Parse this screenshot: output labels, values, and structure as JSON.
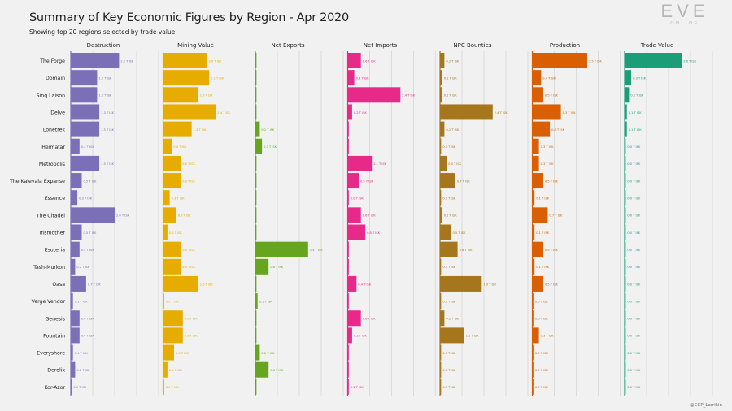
{
  "page": {
    "title": "Summary of Key Economic Figures by Region - Apr 2020",
    "subtitle": "Showing top 20 regions selected by trade value",
    "logo_text": "EVE",
    "logo_subtext": "ONLINE",
    "credit": "@CCP_Larrikin"
  },
  "chart_data": {
    "type": "bar",
    "orientation": "horizontal",
    "layout": "small-multiples",
    "title": "Summary of Key Economic Figures by Region - Apr 2020",
    "subtitle": "Showing top 20 regions selected by trade value",
    "unit": "T ISK",
    "categories": [
      "The Forge",
      "Domain",
      "Sinq Laison",
      "Delve",
      "Lonetrek",
      "Heimatar",
      "Metropolis",
      "The Kalevala Expanse",
      "Essence",
      "The Citadel",
      "Insmother",
      "Esoteria",
      "Tash-Murkon",
      "Oasa",
      "Verge Vendor",
      "Genesis",
      "Fountain",
      "Everyshore",
      "Derelik",
      "Kor-Azor"
    ],
    "series": [
      {
        "name": "Destruction",
        "color": "#7b6fb8",
        "max": 4.0,
        "values": [
          2.2,
          1.2,
          1.2,
          1.3,
          1.3,
          0.4,
          1.3,
          0.5,
          0.3,
          2.0,
          0.5,
          0.4,
          0.2,
          0.7,
          0.1,
          0.4,
          0.4,
          0.1,
          0.2,
          0.05
        ],
        "labels": [
          "2.2 T ISK",
          "1.2 T ISK",
          "1.2 T ISK",
          "1.3 T ISK",
          "1.3 T ISK",
          "0.4 T ISK",
          "1.3 T ISK",
          "0.5 T ISK",
          "0.3 T ISK",
          "2.0 T ISK",
          "0.5 T ISK",
          "0.4 T ISK",
          "0.2 T ISK",
          "0.7 T ISK",
          "0.1 T ISK",
          "0.4 T ISK",
          "0.4 T ISK",
          "0.1 T ISK",
          "0.2 T ISK",
          "0.0 T ISK"
        ]
      },
      {
        "name": "Mining Value",
        "color": "#e6ac00",
        "max": 4.0,
        "values": [
          2.0,
          2.1,
          1.6,
          2.4,
          1.3,
          0.4,
          0.8,
          0.8,
          0.3,
          0.6,
          0.2,
          0.8,
          0.8,
          1.6,
          0.05,
          0.9,
          0.9,
          0.5,
          0.2,
          0.05
        ],
        "labels": [
          "2.0 T ISK",
          "2.1 T ISK",
          "1.6 T ISK",
          "2.4 T ISK",
          "1.3 T ISK",
          "0.4 T ISK",
          "0.8 T ISK",
          "0.8 T ISK",
          "0.3 T ISK",
          "0.6 T ISK",
          "0.2 T ISK",
          "0.8 T ISK",
          "0.8 T ISK",
          "1.6 T ISK",
          "0.0 T ISK",
          "0.9 T ISK",
          "0.9 T ISK",
          "0.5 T ISK",
          "0.2 T ISK",
          "0.0 T ISK"
        ]
      },
      {
        "name": "Net Exports",
        "color": "#66a61e",
        "max": 4.0,
        "values": [
          0.05,
          0.05,
          0.05,
          0.05,
          0.2,
          0.3,
          0.05,
          0.05,
          0.05,
          0.05,
          0.05,
          2.4,
          0.6,
          0.05,
          0.1,
          0.05,
          0.05,
          0.2,
          0.6,
          0.05
        ],
        "labels": [
          "",
          "",
          "",
          "",
          "0.2 T ISK",
          "0.3 T ISK",
          "",
          "",
          "",
          "",
          "",
          "2.4 T ISK",
          "0.6 T ISK",
          "",
          "0.1 T ISK",
          "",
          "",
          "0.2 T ISK",
          "0.6 T ISK",
          ""
        ]
      },
      {
        "name": "Net Imports",
        "color": "#e7298a",
        "max": 4.0,
        "values": [
          0.6,
          0.3,
          2.4,
          0.2,
          0.05,
          0.05,
          1.1,
          0.5,
          0.05,
          0.6,
          0.8,
          0.05,
          0.05,
          0.4,
          0.05,
          0.6,
          0.2,
          0.05,
          0.05,
          0.05
        ],
        "labels": [
          "0.6 T ISK",
          "0.3 T ISK",
          "2.4 T ISK",
          "0.2 T ISK",
          "",
          "",
          "1.1 T ISK",
          "0.5 T ISK",
          "0.0 T ISK",
          "0.6 T ISK",
          "0.8 T ISK",
          "",
          "",
          "0.4 T ISK",
          "",
          "0.6 T ISK",
          "0.2 T ISK",
          "",
          "",
          "0.1 T ISK"
        ]
      },
      {
        "name": "NPC Bounties",
        "color": "#a6761d",
        "max": 4.0,
        "values": [
          0.2,
          0.1,
          0.1,
          2.4,
          0.2,
          0.05,
          0.3,
          0.7,
          0.05,
          0.1,
          0.5,
          0.8,
          0.05,
          1.9,
          0.05,
          0.2,
          1.1,
          0.05,
          0.05,
          0.05
        ],
        "labels": [
          "0.2 T ISK",
          "0.1 T ISK",
          "0.1 T ISK",
          "2.4 T ISK",
          "0.2 T ISK",
          "0.1 T ISK",
          "0.3 T ISK",
          "0.7 T ISK",
          "0.1 T ISK",
          "0.1 T ISK",
          "0.5 T ISK",
          "0.8 T ISK",
          "0.1 T ISK",
          "1.9 T ISK",
          "0.1 T ISK",
          "0.2 T ISK",
          "1.1 T ISK",
          "0.1 T ISK",
          "0.1 T ISK",
          "0.1 T ISK"
        ]
      },
      {
        "name": "Production",
        "color": "#d95f02",
        "max": 4.0,
        "values": [
          2.5,
          0.4,
          0.5,
          1.3,
          0.8,
          0.3,
          0.3,
          0.5,
          0.1,
          0.7,
          0.1,
          0.5,
          0.1,
          0.5,
          0.05,
          0.05,
          0.3,
          0.05,
          0.05,
          0.05
        ],
        "labels": [
          "2.5 T ISK",
          "0.4 T ISK",
          "0.5 T ISK",
          "1.3 T ISK",
          "0.8 T ISK",
          "0.3 T ISK",
          "0.3 T ISK",
          "0.5 T ISK",
          "0.1 T ISK",
          "0.7 T ISK",
          "0.1 T ISK",
          "0.5 T ISK",
          "0.1 T ISK",
          "0.5 T ISK",
          "0.0 T ISK",
          "0.0 T ISK",
          "0.3 T ISK",
          "0.0 T ISK",
          "0.0 T ISK",
          "0.0 T ISK"
        ]
      },
      {
        "name": "Trade Value",
        "color": "#1b9e77",
        "max": 4.0,
        "values": [
          2.6,
          0.3,
          0.2,
          0.1,
          0.1,
          0.05,
          0.05,
          0.05,
          0.05,
          0.05,
          0.05,
          0.05,
          0.05,
          0.05,
          0.05,
          0.05,
          0.05,
          0.05,
          0.05,
          0.05
        ],
        "labels": [
          "2.6 T ISK",
          "0.3 T ISK",
          "0.2 T ISK",
          "0.1 T ISK",
          "0.1 T ISK",
          "0.0 T ISK",
          "0.0 T ISK",
          "0.0 T ISK",
          "0.0 T ISK",
          "0.0 T ISK",
          "0.0 T ISK",
          "0.0 T ISK",
          "0.0 T ISK",
          "0.0 T ISK",
          "0.0 T ISK",
          "0.0 T ISK",
          "0.0 T ISK",
          "0.0 T ISK",
          "0.0 T ISK",
          "0.0 T ISK"
        ]
      }
    ]
  }
}
